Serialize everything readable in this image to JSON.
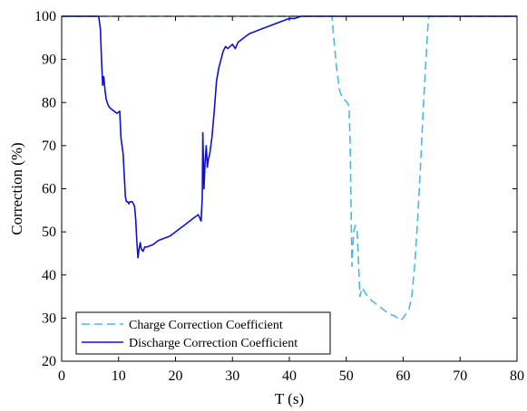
{
  "chart_data": {
    "type": "line",
    "title": "",
    "xlabel": "T (s)",
    "ylabel": "Correction (%)",
    "xlim": [
      0,
      80
    ],
    "ylim": [
      20,
      100
    ],
    "xticks": [
      0,
      10,
      20,
      30,
      40,
      50,
      60,
      70,
      80
    ],
    "yticks": [
      20,
      30,
      40,
      50,
      60,
      70,
      80,
      90,
      100
    ],
    "grid": false,
    "legend_position": "bottom-left",
    "series": [
      {
        "name": "Charge Correction Coefficient",
        "color": "#4db8e6",
        "style": "dashed",
        "x": [
          0,
          47.5,
          47.8,
          48.3,
          48.8,
          49.3,
          49.8,
          50.2,
          50.5,
          50.7,
          50.85,
          51.0,
          51.3,
          51.6,
          51.9,
          52.1,
          52.4,
          52.8,
          53.5,
          54.5,
          55.5,
          56.5,
          57.5,
          58.5,
          59.0,
          59.5,
          60.0,
          60.5,
          61.0,
          61.5,
          62.0,
          62.5,
          63.0,
          63.5,
          64.0,
          64.3,
          64.5,
          80
        ],
        "y": [
          100,
          100,
          95,
          88,
          83,
          81,
          80.5,
          80,
          79,
          70,
          55,
          42,
          50,
          51.5,
          50,
          45,
          35,
          37,
          35.5,
          34,
          33,
          32,
          31,
          30.5,
          30,
          29.5,
          30,
          31,
          32,
          35,
          42,
          52,
          64,
          78,
          90,
          97,
          100,
          100
        ]
      },
      {
        "name": "Discharge Correction Coefficient",
        "color": "#1010d0",
        "style": "solid",
        "x": [
          0,
          6.5,
          6.8,
          7.0,
          7.2,
          7.4,
          7.6,
          7.8,
          8.0,
          8.3,
          8.7,
          9.2,
          9.7,
          10.2,
          10.4,
          10.6,
          10.8,
          11.0,
          11.2,
          11.4,
          11.6,
          11.8,
          12.0,
          12.4,
          12.8,
          13.0,
          13.2,
          13.4,
          13.6,
          13.8,
          14.0,
          14.3,
          14.6,
          15.0,
          16,
          17,
          18,
          19,
          20,
          21,
          22,
          23,
          24,
          24.5,
          24.7,
          24.8,
          25.0,
          25.2,
          25.4,
          25.6,
          25.8,
          26.0,
          26.4,
          26.8,
          27.2,
          27.6,
          28.0,
          28.4,
          28.8,
          29.2,
          29.6,
          30.0,
          30.5,
          31,
          32,
          33,
          34,
          35,
          36,
          37,
          38,
          39,
          40,
          41,
          42,
          42.5,
          43,
          80
        ],
        "y": [
          100,
          100,
          97,
          90,
          84,
          86,
          83,
          81,
          80,
          79,
          78.5,
          78,
          77.5,
          78,
          72,
          70,
          68,
          63,
          58,
          57,
          57,
          56.5,
          57,
          57,
          56,
          53,
          48,
          44,
          46,
          47.5,
          46,
          45.5,
          46.5,
          46.5,
          47,
          48,
          48.5,
          49,
          50,
          51,
          52,
          53,
          54,
          52.5,
          58,
          73,
          60,
          66,
          70,
          65,
          67,
          68,
          72,
          78,
          85,
          88,
          90,
          92,
          93,
          92.5,
          93,
          93.5,
          92.5,
          94,
          95,
          96,
          96.5,
          97,
          97.5,
          98,
          98.5,
          99,
          99.5,
          99.5,
          100,
          100,
          100,
          100
        ]
      }
    ]
  }
}
